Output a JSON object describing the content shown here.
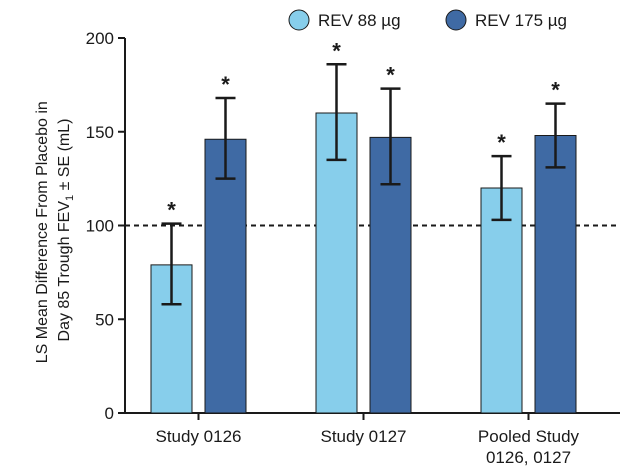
{
  "chart_data": {
    "type": "bar",
    "categories": [
      "Study 0126",
      "Study 0127",
      "Pooled Study\n0126, 0127"
    ],
    "series": [
      {
        "name": "REV 88 µg",
        "color": "#87CEEB",
        "values": [
          79,
          160,
          120
        ],
        "err_low": [
          58,
          135,
          103
        ],
        "err_high": [
          101,
          186,
          137
        ],
        "stars": [
          "*",
          "*",
          "*"
        ]
      },
      {
        "name": "REV 175 µg",
        "color": "#3F6AA4",
        "values": [
          146,
          147,
          148
        ],
        "err_low": [
          125,
          122,
          131
        ],
        "err_high": [
          168,
          173,
          165
        ],
        "stars": [
          "*",
          "*",
          "*"
        ]
      }
    ],
    "ylabel_line1": "LS Mean Difference From Placebo in",
    "ylabel_line2_main": "Day 85 Trough FEV",
    "ylabel_line2_sub": "1",
    "ylabel_line2_tail": " ± SE (mL)",
    "ylim": [
      0,
      200
    ],
    "yticks": [
      "0",
      "50",
      "100",
      "150",
      "200"
    ],
    "reference_line": 100,
    "legend_position": "top-right",
    "grid": false
  }
}
